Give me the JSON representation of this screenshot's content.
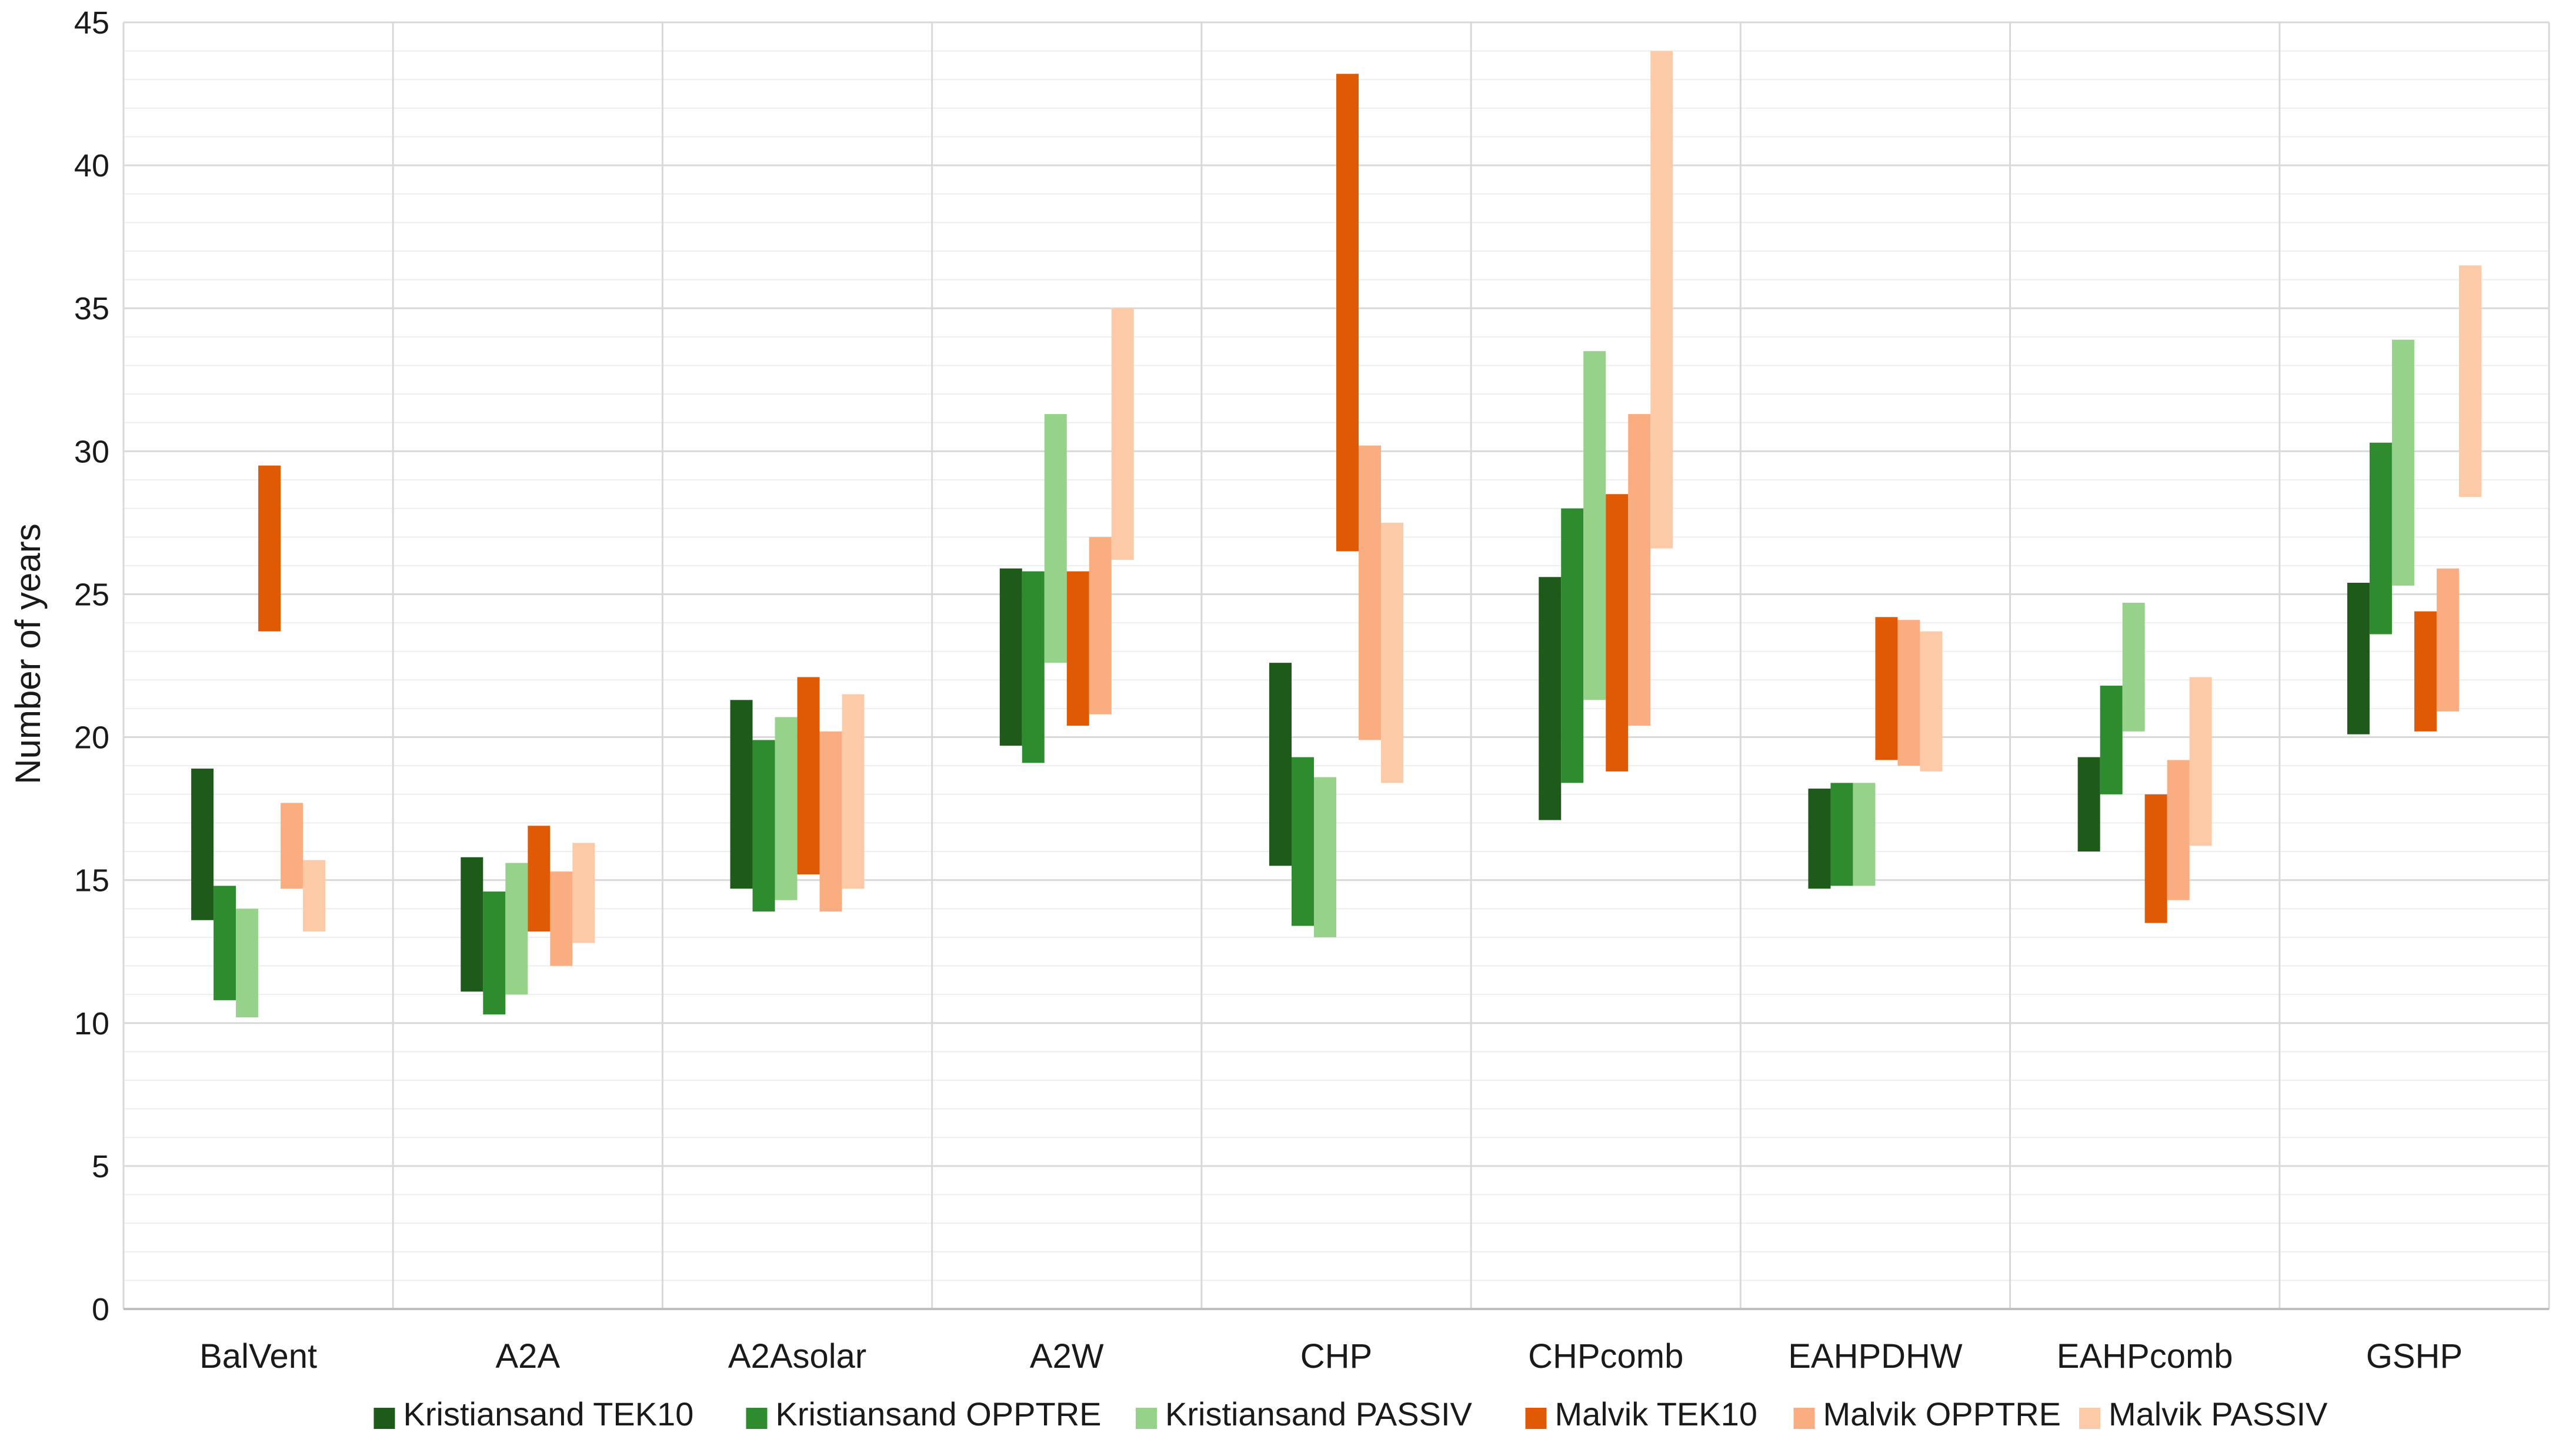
{
  "chart_data": {
    "type": "bar",
    "subtype": "floating-range-bar",
    "title": "",
    "xlabel": "",
    "ylabel": "Number of years",
    "ylim": [
      0,
      45
    ],
    "yticks": [
      0,
      5,
      10,
      15,
      20,
      25,
      30,
      35,
      40,
      45
    ],
    "grid": true,
    "legend_position": "bottom",
    "categories": [
      "BalVent",
      "A2A",
      "A2Asolar",
      "A2W",
      "CHP",
      "CHPcomb",
      "EAHPDHW",
      "EAHPcomb",
      "GSHP"
    ],
    "series": [
      {
        "name": "Kristiansand TEK10",
        "color": "#1e5a1a",
        "ranges": [
          [
            13.6,
            18.9
          ],
          [
            11.1,
            15.8
          ],
          [
            14.7,
            21.3
          ],
          [
            19.7,
            25.9
          ],
          [
            15.5,
            22.6
          ],
          [
            17.1,
            25.6
          ],
          [
            14.7,
            18.2
          ],
          [
            16.0,
            19.3
          ],
          [
            20.1,
            25.4
          ]
        ]
      },
      {
        "name": "Kristiansand OPPTRE",
        "color": "#2e8b2e",
        "ranges": [
          [
            10.8,
            14.8
          ],
          [
            10.3,
            14.6
          ],
          [
            13.9,
            19.9
          ],
          [
            19.1,
            25.8
          ],
          [
            13.4,
            19.3
          ],
          [
            18.4,
            28.0
          ],
          [
            14.8,
            18.4
          ],
          [
            18.0,
            21.8
          ],
          [
            23.6,
            30.3
          ]
        ]
      },
      {
        "name": "Kristiansand PASSIV",
        "color": "#97d28a",
        "ranges": [
          [
            10.2,
            14.0
          ],
          [
            11.0,
            15.6
          ],
          [
            14.3,
            20.7
          ],
          [
            22.6,
            31.3
          ],
          [
            13.0,
            18.6
          ],
          [
            21.3,
            33.5
          ],
          [
            14.8,
            18.4
          ],
          [
            20.2,
            24.7
          ],
          [
            25.3,
            33.9
          ]
        ]
      },
      {
        "name": "Malvik TEK10",
        "color": "#e05a06",
        "ranges": [
          [
            23.7,
            29.5
          ],
          [
            13.2,
            16.9
          ],
          [
            15.2,
            22.1
          ],
          [
            20.4,
            25.8
          ],
          [
            26.5,
            43.2
          ],
          [
            18.8,
            28.5
          ],
          [
            19.2,
            24.2
          ],
          [
            13.5,
            18.0
          ],
          [
            20.2,
            24.4
          ]
        ]
      },
      {
        "name": "Malvik OPPTRE",
        "color": "#f9ad80",
        "ranges": [
          [
            14.7,
            17.7
          ],
          [
            12.0,
            15.3
          ],
          [
            13.9,
            20.2
          ],
          [
            20.8,
            27.0
          ],
          [
            19.9,
            30.2
          ],
          [
            20.4,
            31.3
          ],
          [
            19.0,
            24.1
          ],
          [
            14.3,
            19.2
          ],
          [
            20.9,
            25.9
          ]
        ]
      },
      {
        "name": "Malvik PASSIV",
        "color": "#fdcaa8",
        "ranges": [
          [
            13.2,
            15.7
          ],
          [
            12.8,
            16.3
          ],
          [
            14.7,
            21.5
          ],
          [
            26.2,
            35.0
          ],
          [
            18.4,
            27.5
          ],
          [
            26.6,
            44.0
          ],
          [
            18.8,
            23.7
          ],
          [
            16.2,
            22.1
          ],
          [
            28.4,
            36.5
          ]
        ]
      }
    ],
    "colors": {
      "grid_major": "#d9d9d9",
      "grid_minor": "#eeeeee",
      "axis": "#bfbfbf"
    }
  }
}
